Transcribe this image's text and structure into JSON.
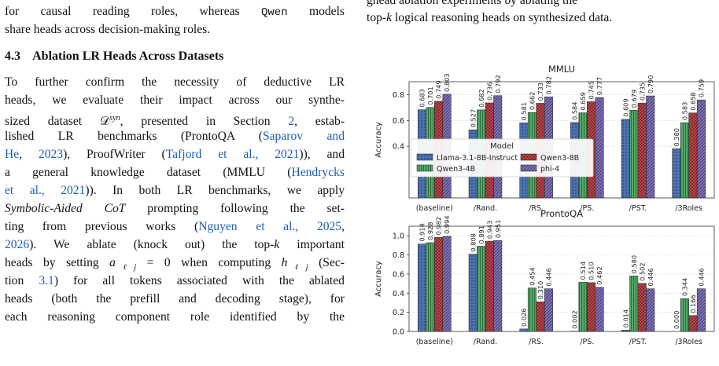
{
  "left_column": {
    "line_1": "for causal reading roles, whereas",
    "model_qwen": "Qwen",
    "line_1_tail": "models",
    "line_2": "share heads across decision-making roles.",
    "section_number": "4.3",
    "section_title": "Ablation LR Heads Across Datasets",
    "p_lines": [
      "To further confirm the necessity of deductive LR",
      "heads, we evaluate their impact across our synthe-",
      "sized dataset 𝒟",
      "syn",
      ", presented in Section ",
      "2",
      ", estab-",
      "lished LR benchmarks (ProntoQA (",
      "Saparov and",
      "He",
      ", ",
      "2023",
      "), ProofWriter (",
      "Tafjord et al.",
      "2021",
      ")), and",
      "a general knowledge dataset (MMLU (",
      "Hendrycks",
      "et al.",
      "2021",
      ")). In both LR benchmarks, we apply",
      "Symbolic-Aided CoT",
      " prompting following the set-",
      "ting from previous works (",
      "Nguyen et al.",
      "2025",
      "2026",
      "). We ablate (knock out) the top-",
      "k",
      " important",
      "heads by setting ",
      "a",
      "ℓj",
      " = 0 when computing ",
      "h",
      "ℓj",
      " (Sec-",
      "tion ",
      "3.1",
      ") for all tokens associated with the ablated",
      "heads (both the prefill and decoding stage), for",
      "each reasoning component role identified by the"
    ]
  },
  "right_column": {
    "caption_line_1": "ghead ablation experiments by ablating the",
    "caption_line_2_pre": "top-",
    "caption_line_2_k": "k",
    "caption_line_2_post": " logical reasoning heads on synthesized data."
  },
  "chart_data": [
    {
      "type": "bar",
      "title": "MMLU",
      "ylabel": "Accuracy",
      "ylim": [
        0.0,
        0.9
      ],
      "yticks": [
        "0.4",
        "0.6",
        "0.8"
      ],
      "categories": [
        "(baseline)",
        "/Rand.",
        "/RS.",
        "/PS.",
        "/PST.",
        "/3Roles"
      ],
      "series": [
        {
          "name": "Llama-3.1-8B-Instruct",
          "color": "#4c72b0",
          "values": [
            0.683,
            0.527,
            0.581,
            0.584,
            0.609,
            0.38
          ]
        },
        {
          "name": "Qwen3-4B",
          "color": "#55a868",
          "values": [
            0.701,
            0.682,
            0.662,
            0.659,
            0.679,
            0.583
          ]
        },
        {
          "name": "Qwen3-8B",
          "color": "#c44e52",
          "values": [
            0.749,
            0.736,
            0.733,
            0.745,
            0.735,
            0.658
          ]
        },
        {
          "name": "phi-4",
          "color": "#8172b2",
          "values": [
            0.803,
            0.792,
            0.782,
            0.777,
            0.79,
            0.759
          ]
        }
      ],
      "legend_title": "Model",
      "legend_placement": "center-left",
      "grid": true
    },
    {
      "type": "bar",
      "title": "ProntoQA",
      "ylabel": "Accuracy",
      "ylim": [
        0.0,
        1.1
      ],
      "yticks": [
        "0.0",
        "0.2",
        "0.4",
        "0.6",
        "0.8",
        "1.0"
      ],
      "categories": [
        "(baseline)",
        "/Rand.",
        "/RS.",
        "/PS.",
        "/PST.",
        "/3Roles"
      ],
      "series": [
        {
          "name": "Llama-3.1-8B-Instruct",
          "color": "#4c72b0",
          "values": [
            0.914,
            0.808,
            0.026,
            0.002,
            0.014,
            0.0
          ]
        },
        {
          "name": "Qwen3-4B",
          "color": "#55a868",
          "values": [
            0.928,
            0.891,
            0.454,
            0.514,
            0.58,
            0.344
          ]
        },
        {
          "name": "Qwen3-8B",
          "color": "#c44e52",
          "values": [
            0.982,
            0.943,
            0.31,
            0.51,
            0.502,
            0.166
          ]
        },
        {
          "name": "phi-4",
          "color": "#8172b2",
          "values": [
            0.994,
            0.951,
            0.446,
            0.462,
            0.446,
            0.446
          ]
        }
      ],
      "grid": true
    }
  ]
}
